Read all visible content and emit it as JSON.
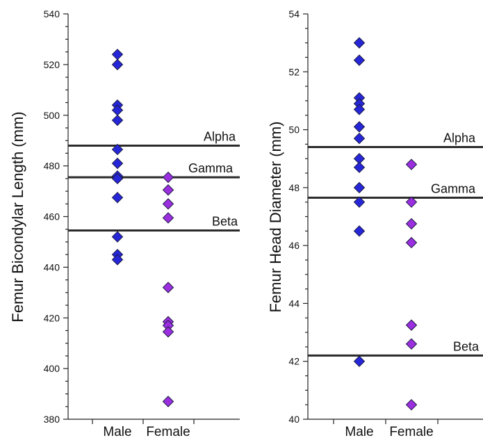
{
  "chart_data": [
    {
      "type": "scatter",
      "title": "",
      "ylabel": "Femur Bicondylar Length (mm)",
      "xlabel": "",
      "categories": [
        "Male",
        "Female"
      ],
      "ylim": [
        380,
        540
      ],
      "yticks": [
        380,
        400,
        420,
        440,
        460,
        480,
        500,
        520,
        540
      ],
      "grid": false,
      "series": [
        {
          "category": "Male",
          "color": "#2626d9",
          "values": [
            524,
            520,
            504,
            502,
            498,
            486.5,
            481,
            476,
            475,
            467.5,
            452,
            445,
            443
          ]
        },
        {
          "category": "Female",
          "color": "#9b2fe0",
          "values": [
            475.5,
            470.5,
            465,
            459.5,
            432,
            418.5,
            417,
            414.5,
            387
          ]
        }
      ],
      "reference_lines": [
        {
          "label": "Alpha",
          "value": 488
        },
        {
          "label": "Gamma",
          "value": 475.5
        },
        {
          "label": "Beta",
          "value": 454.5
        }
      ]
    },
    {
      "type": "scatter",
      "title": "",
      "ylabel": "Femur Head Diameter (mm)",
      "xlabel": "",
      "categories": [
        "Male",
        "Female"
      ],
      "ylim": [
        40,
        54
      ],
      "yticks": [
        40,
        42,
        44,
        46,
        48,
        50,
        52,
        54
      ],
      "grid": false,
      "series": [
        {
          "category": "Male",
          "color": "#2626d9",
          "values": [
            53,
            52.4,
            51.1,
            50.9,
            50.7,
            50.1,
            49.7,
            49,
            48.7,
            48,
            47.5,
            46.5,
            42
          ]
        },
        {
          "category": "Female",
          "color": "#9b2fe0",
          "values": [
            48.8,
            47.5,
            46.75,
            46.1,
            43.25,
            42.6,
            40.5
          ]
        }
      ],
      "reference_lines": [
        {
          "label": "Alpha",
          "value": 49.4
        },
        {
          "label": "Gamma",
          "value": 47.65
        },
        {
          "label": "Beta",
          "value": 42.2
        }
      ]
    }
  ]
}
